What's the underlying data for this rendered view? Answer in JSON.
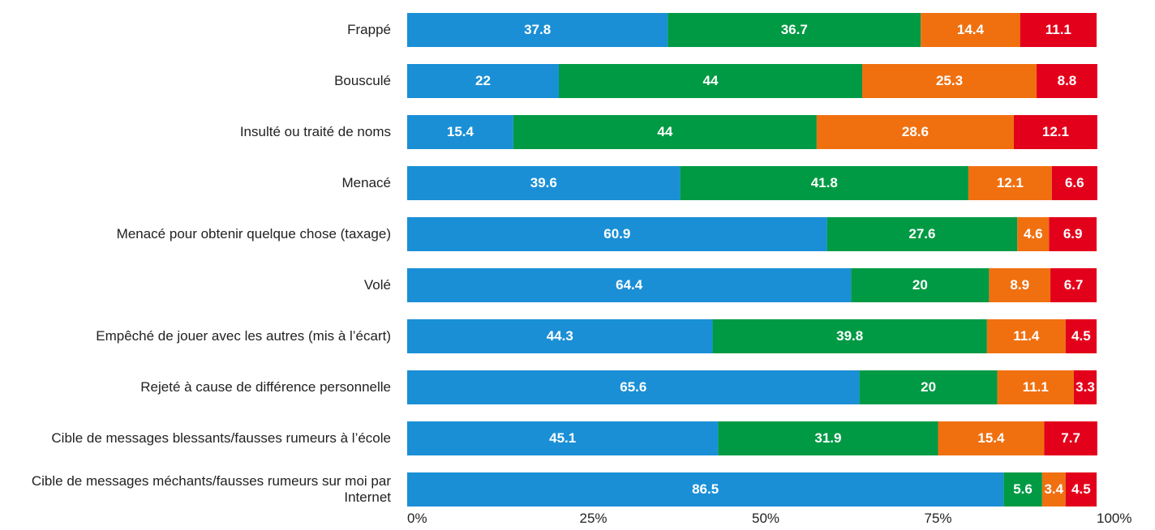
{
  "chart_data": {
    "type": "stacked_bar_horizontal",
    "categories": [
      "Frappé",
      "Bousculé",
      "Insulté ou traité de noms",
      "Menacé",
      "Menacé pour obtenir quelque chose (taxage)",
      "Volé",
      "Empêché de jouer avec les autres (mis à l’écart)",
      "Rejeté à cause de différence personnelle",
      "Cible de messages blessants/fausses rumeurs à l’école",
      "Cible de messages méchants/fausses rumeurs sur moi par Internet"
    ],
    "series": [
      {
        "color": "#1a8fd6",
        "values": [
          37.8,
          22,
          15.4,
          39.6,
          60.9,
          64.4,
          44.3,
          65.6,
          45.1,
          86.5
        ]
      },
      {
        "color": "#009a44",
        "values": [
          36.7,
          44,
          44,
          41.8,
          27.6,
          20,
          39.8,
          20,
          31.9,
          5.6
        ]
      },
      {
        "color": "#f07010",
        "values": [
          14.4,
          25.3,
          28.6,
          12.1,
          4.6,
          8.9,
          11.4,
          11.1,
          15.4,
          3.4
        ]
      },
      {
        "color": "#e3001b",
        "values": [
          11.1,
          8.8,
          12.1,
          6.6,
          6.9,
          6.7,
          4.5,
          3.3,
          7.7,
          4.5
        ]
      }
    ],
    "xlim": [
      0,
      100
    ],
    "xticks": [
      {
        "value": 0,
        "label": "0%"
      },
      {
        "value": 25,
        "label": "25%"
      },
      {
        "value": 50,
        "label": "50%"
      },
      {
        "value": 75,
        "label": "75%"
      },
      {
        "value": 100,
        "label": "100%"
      }
    ]
  }
}
